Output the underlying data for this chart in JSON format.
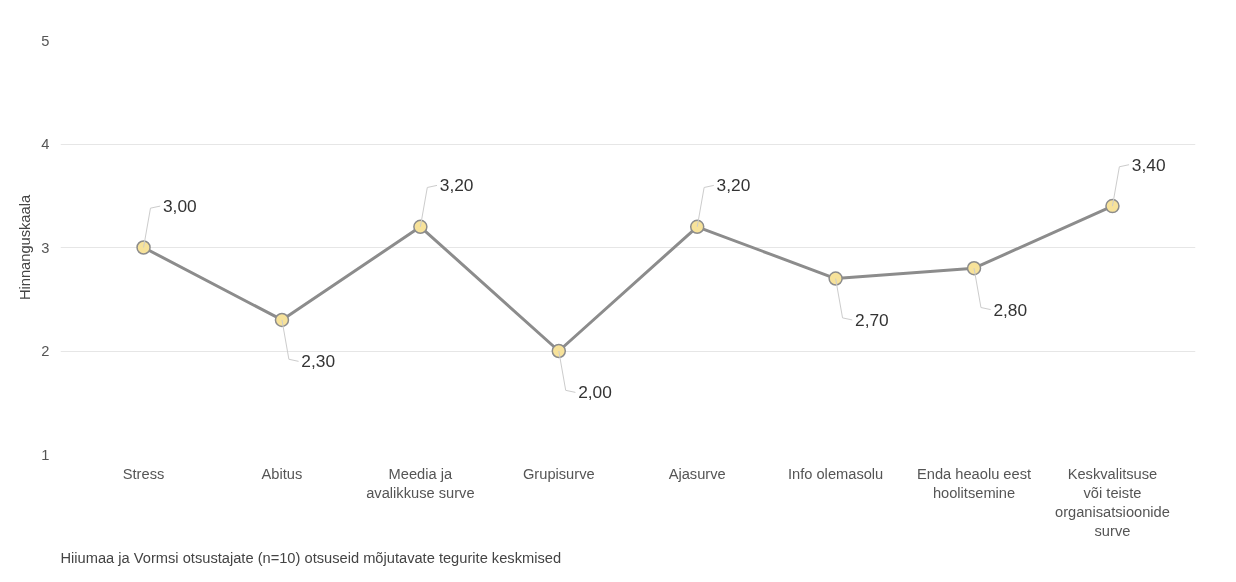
{
  "chart_data": {
    "type": "line",
    "ylabel": "Hinnanguskaala",
    "categories": [
      "Stress",
      "Abitus",
      "Meedia ja avalikkuse surve",
      "Grupisurve",
      "Ajasurve",
      "Info olemasolu",
      "Enda heaolu eest hoolitsemine",
      "Keskvalitsuse või teiste organisatsioonide surve"
    ],
    "series": [
      {
        "color": "#8c8c8c",
        "values": [
          3.0,
          2.3,
          3.2,
          2.0,
          3.2,
          2.7,
          2.8,
          3.4
        ],
        "value_labels": [
          "3,00",
          "2,30",
          "3,20",
          "2,00",
          "3,20",
          "2,70",
          "2,80",
          "3,40"
        ]
      }
    ],
    "ylim": [
      1,
      5
    ],
    "yticks": [
      1,
      2,
      3,
      4,
      5
    ],
    "grid": "y",
    "marker": "circle",
    "line_style": "solid",
    "annotations": [
      "Hiiumaa ja Vormsi otsustajate (n=10) otsuseid mõjutavate tegurite keskmised"
    ]
  }
}
